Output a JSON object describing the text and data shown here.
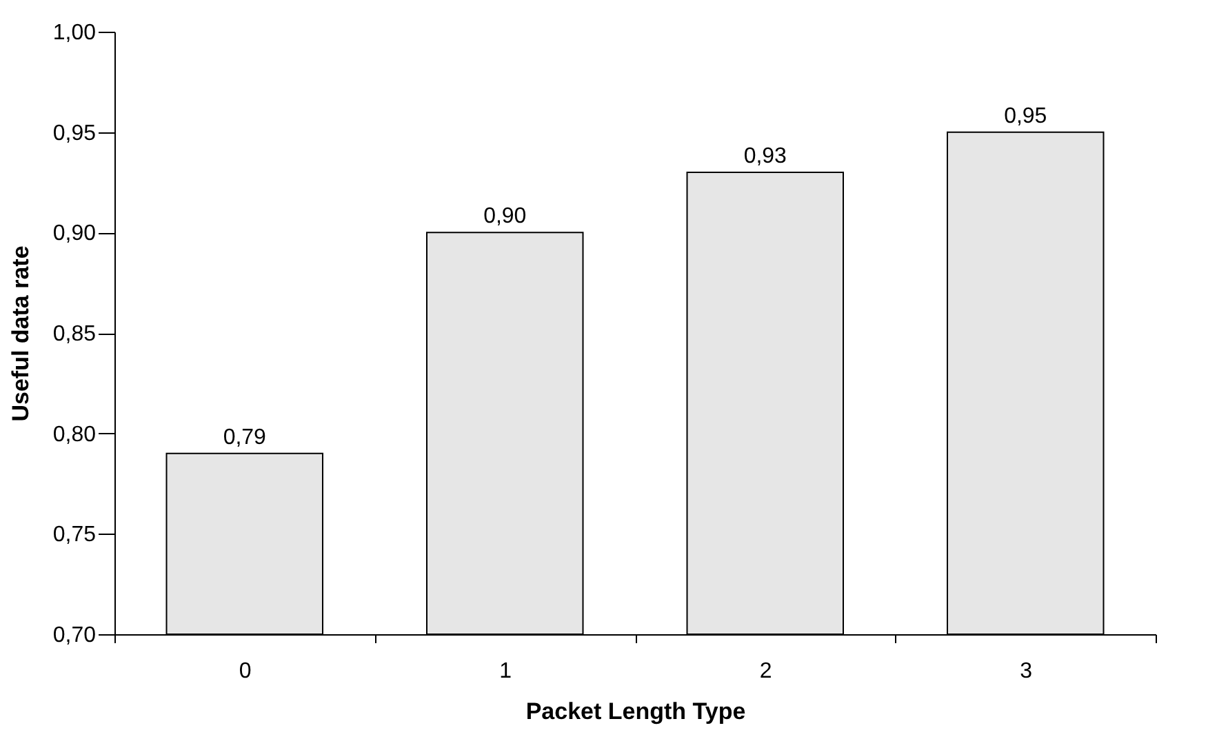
{
  "chart_data": {
    "type": "bar",
    "xlabel": "Packet Length Type",
    "ylabel": "Useful data rate",
    "categories": [
      "0",
      "1",
      "2",
      "3"
    ],
    "values": [
      0.79,
      0.9,
      0.93,
      0.95
    ],
    "value_labels": [
      "0,79",
      "0,90",
      "0,93",
      "0,95"
    ],
    "color": "#e6e6e6",
    "ylim": [
      0.7,
      1.0
    ],
    "yticks": [
      {
        "value": 0.7,
        "label": "0,70"
      },
      {
        "value": 0.75,
        "label": "0,75"
      },
      {
        "value": 0.8,
        "label": "0,80"
      },
      {
        "value": 0.85,
        "label": "0,85"
      },
      {
        "value": 0.9,
        "label": "0,90"
      },
      {
        "value": 0.95,
        "label": "0,95"
      },
      {
        "value": 1.0,
        "label": "1,00"
      }
    ],
    "grid": false
  }
}
